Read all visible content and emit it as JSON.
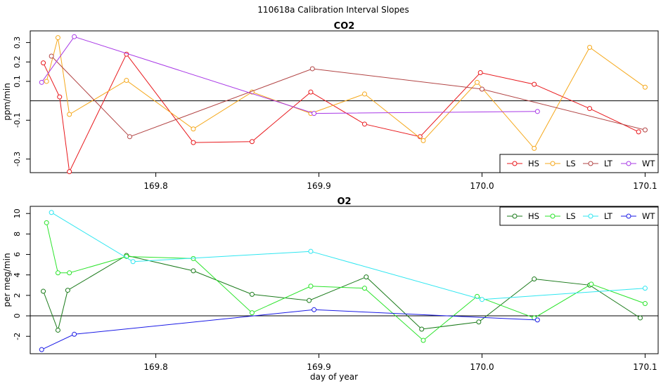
{
  "figure_title": "110618a   Calibration Interval Slopes",
  "xlabel": "day of year",
  "x_ticks": [
    "169.8",
    "169.9",
    "170.0",
    "170.1"
  ],
  "x_tick_values": [
    169.8,
    169.9,
    170.0,
    170.1
  ],
  "chart_data": [
    {
      "type": "line",
      "title": "CO2",
      "ylabel": "ppm/min",
      "xlim": [
        169.723,
        170.108
      ],
      "ylim": [
        -0.37,
        0.36
      ],
      "y_ticks": [
        "0.3",
        "0.2",
        "0.1",
        "-0.1",
        "-0.3"
      ],
      "y_tick_values": [
        0.3,
        0.2,
        0.1,
        -0.1,
        -0.3
      ],
      "legend_position": "bottom-right",
      "series": [
        {
          "name": "HS",
          "color": "#e8181c",
          "x": [
            169.731,
            169.741,
            169.747,
            169.782,
            169.823,
            169.859,
            169.895,
            169.928,
            169.962,
            169.999,
            170.032,
            170.066,
            170.096
          ],
          "y": [
            0.195,
            0.02,
            -0.365,
            0.24,
            -0.215,
            -0.21,
            0.045,
            -0.12,
            -0.185,
            0.145,
            0.085,
            -0.04,
            -0.16
          ]
        },
        {
          "name": "LS",
          "color": "#f5a81b",
          "x": [
            169.733,
            169.74,
            169.747,
            169.782,
            169.823,
            169.859,
            169.895,
            169.928,
            169.964,
            169.997,
            170.032,
            170.066,
            170.1
          ],
          "y": [
            0.1,
            0.325,
            -0.07,
            0.105,
            -0.145,
            0.045,
            -0.065,
            0.035,
            -0.205,
            0.095,
            -0.245,
            0.275,
            0.07
          ]
        },
        {
          "name": "LT",
          "color": "#b24444",
          "x": [
            169.736,
            169.784,
            169.896,
            170.0,
            170.1
          ],
          "y": [
            0.23,
            -0.185,
            0.165,
            0.06,
            -0.15
          ]
        },
        {
          "name": "WT",
          "color": "#a838e6",
          "x": [
            169.73,
            169.75,
            169.897,
            170.034
          ],
          "y": [
            0.095,
            0.33,
            -0.065,
            -0.055
          ]
        }
      ]
    },
    {
      "type": "line",
      "title": "O2",
      "ylabel": "per meg/min",
      "xlim": [
        169.723,
        170.108
      ],
      "ylim": [
        -3.7,
        10.7
      ],
      "y_ticks": [
        "10",
        "8",
        "6",
        "4",
        "2",
        "0",
        "-2"
      ],
      "y_tick_values": [
        10,
        8,
        6,
        4,
        2,
        0,
        -2
      ],
      "legend_position": "top-right",
      "series": [
        {
          "name": "HS",
          "color": "#1a7a1a",
          "x": [
            169.731,
            169.74,
            169.746,
            169.782,
            169.823,
            169.859,
            169.894,
            169.929,
            169.963,
            169.998,
            170.032,
            170.066,
            170.097
          ],
          "y": [
            2.4,
            -1.4,
            2.5,
            5.9,
            4.4,
            2.1,
            1.5,
            3.8,
            -1.3,
            -0.6,
            3.6,
            3.0,
            -0.2
          ]
        },
        {
          "name": "LS",
          "color": "#2ae42a",
          "x": [
            169.733,
            169.74,
            169.747,
            169.782,
            169.823,
            169.859,
            169.895,
            169.928,
            169.964,
            169.997,
            170.032,
            170.067,
            170.1
          ],
          "y": [
            9.1,
            4.2,
            4.2,
            5.8,
            5.6,
            0.3,
            2.9,
            2.7,
            -2.4,
            1.9,
            -0.2,
            3.1,
            1.2
          ]
        },
        {
          "name": "LT",
          "color": "#2ee6f0",
          "x": [
            169.736,
            169.786,
            169.895,
            170.0,
            170.1
          ],
          "y": [
            10.1,
            5.3,
            6.3,
            1.6,
            2.7
          ]
        },
        {
          "name": "WT",
          "color": "#1a1ae6",
          "x": [
            169.73,
            169.75,
            169.897,
            170.034
          ],
          "y": [
            -3.3,
            -1.8,
            0.6,
            -0.4
          ]
        }
      ]
    }
  ]
}
